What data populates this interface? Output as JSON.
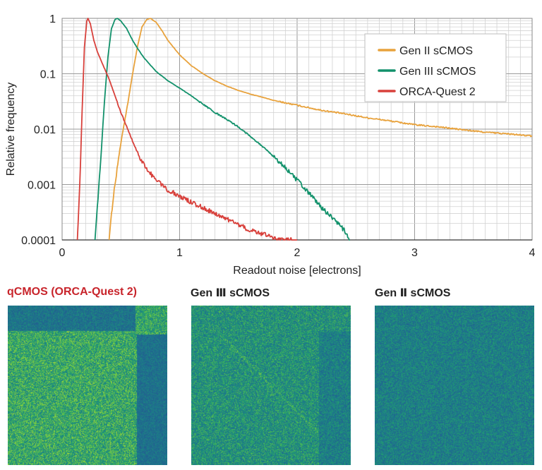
{
  "chart_data": {
    "type": "line",
    "title": "",
    "xlabel": "Readout noise [electrons]",
    "ylabel": "Relative frequency",
    "xlim": [
      0,
      4
    ],
    "ylim": [
      0.0001,
      1
    ],
    "yscale": "log",
    "grid": true,
    "legend_position": "top-right",
    "x_ticks": [
      0,
      1,
      2,
      3,
      4
    ],
    "x_tick_labels": [
      "0",
      "1",
      "2",
      "3",
      "4"
    ],
    "y_ticks": [
      0.0001,
      0.001,
      0.01,
      0.1,
      1
    ],
    "y_tick_labels": [
      "0.0001",
      "0.001",
      "0.01",
      "0.1",
      "1"
    ],
    "series": [
      {
        "name": "Gen II sCMOS",
        "color": "#E8A23C",
        "x": [
          0.4,
          0.42,
          0.45,
          0.48,
          0.52,
          0.56,
          0.6,
          0.64,
          0.68,
          0.72,
          0.75,
          0.8,
          0.85,
          0.9,
          1.0,
          1.1,
          1.2,
          1.3,
          1.4,
          1.5,
          1.6,
          1.7,
          1.8,
          2.0,
          2.2,
          2.4,
          2.6,
          2.8,
          3.0,
          3.2,
          3.4,
          3.6,
          3.8,
          4.0
        ],
        "y": [
          0.0001,
          0.0003,
          0.001,
          0.003,
          0.01,
          0.03,
          0.1,
          0.3,
          0.7,
          0.95,
          1.0,
          0.85,
          0.6,
          0.4,
          0.22,
          0.14,
          0.1,
          0.075,
          0.06,
          0.05,
          0.043,
          0.038,
          0.033,
          0.027,
          0.022,
          0.019,
          0.016,
          0.014,
          0.012,
          0.011,
          0.0098,
          0.0088,
          0.0082,
          0.0075
        ]
      },
      {
        "name": "Gen III sCMOS",
        "color": "#12916B",
        "x": [
          0.28,
          0.3,
          0.33,
          0.36,
          0.39,
          0.42,
          0.45,
          0.47,
          0.5,
          0.55,
          0.6,
          0.65,
          0.7,
          0.8,
          0.9,
          1.0,
          1.1,
          1.2,
          1.3,
          1.4,
          1.5,
          1.6,
          1.7,
          1.8,
          1.9,
          2.0,
          2.1,
          2.2,
          2.3,
          2.4,
          2.45
        ],
        "y": [
          0.0001,
          0.0004,
          0.003,
          0.03,
          0.2,
          0.65,
          0.95,
          1.0,
          0.9,
          0.65,
          0.4,
          0.27,
          0.19,
          0.11,
          0.075,
          0.055,
          0.04,
          0.028,
          0.02,
          0.015,
          0.011,
          0.0075,
          0.005,
          0.0032,
          0.002,
          0.0012,
          0.0007,
          0.0004,
          0.00025,
          0.00015,
          0.0001
        ]
      },
      {
        "name": "ORCA-Quest 2",
        "color": "#D8403B",
        "x": [
          0.13,
          0.15,
          0.17,
          0.19,
          0.21,
          0.22,
          0.24,
          0.27,
          0.3,
          0.35,
          0.4,
          0.45,
          0.5,
          0.55,
          0.6,
          0.65,
          0.7,
          0.75,
          0.8,
          0.85,
          0.9,
          1.0,
          1.1,
          1.2,
          1.3,
          1.4,
          1.5,
          1.6,
          1.7,
          1.8,
          1.9,
          2.0
        ],
        "y": [
          0.0001,
          0.001,
          0.02,
          0.3,
          0.9,
          1.0,
          0.8,
          0.4,
          0.25,
          0.14,
          0.08,
          0.04,
          0.02,
          0.011,
          0.006,
          0.0035,
          0.0022,
          0.0016,
          0.0012,
          0.001,
          0.0008,
          0.00062,
          0.00048,
          0.00038,
          0.0003,
          0.00024,
          0.00019,
          0.00015,
          0.00013,
          0.00011,
          0.0001,
          0.0001
        ]
      }
    ]
  },
  "panels": [
    {
      "title": "qCMOS (ORCA-Quest 2)",
      "title_color": "#C8242B",
      "texture": "qcmos"
    },
    {
      "title": "Gen Ⅲ sCMOS",
      "title_color": "#222222",
      "texture": "gen3"
    },
    {
      "title": "Gen Ⅱ sCMOS",
      "title_color": "#222222",
      "texture": "gen2"
    }
  ]
}
